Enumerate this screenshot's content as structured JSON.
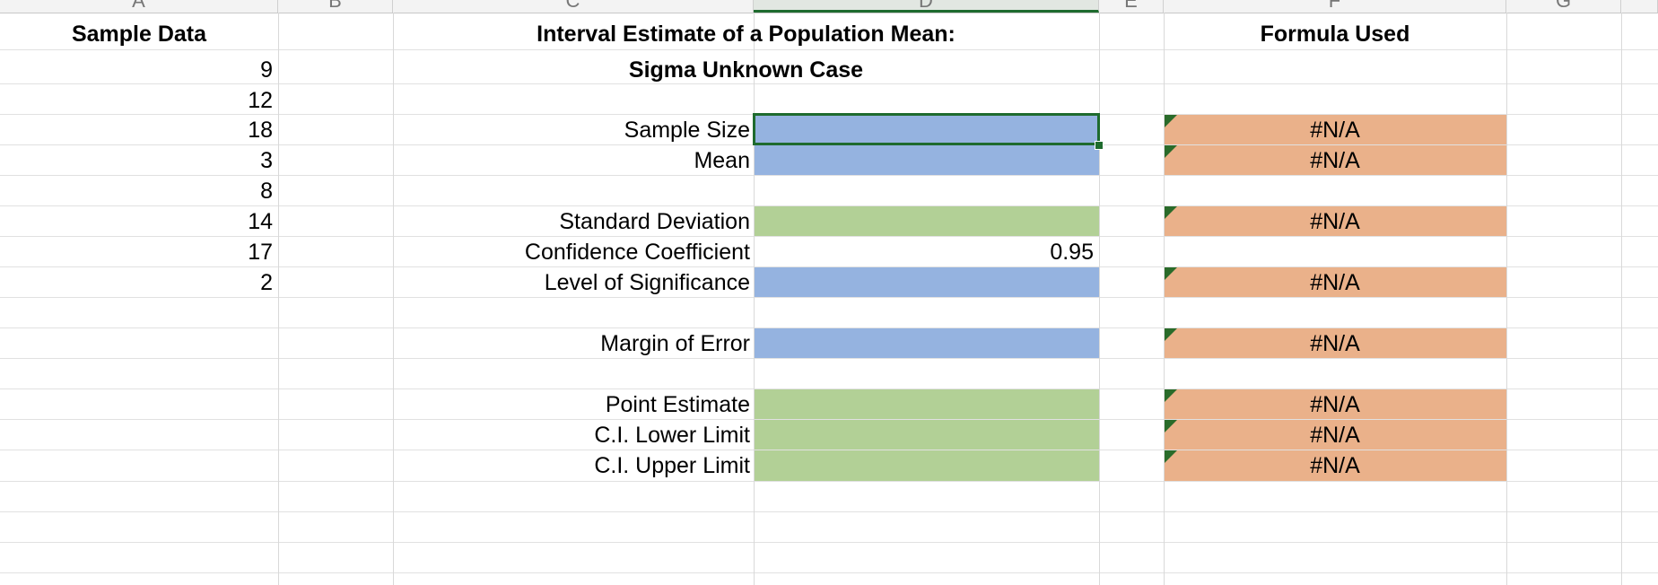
{
  "sheet": {
    "columns": [
      {
        "letter": "A",
        "selected": false
      },
      {
        "letter": "B",
        "selected": false
      },
      {
        "letter": "C",
        "selected": false
      },
      {
        "letter": "D",
        "selected": true
      },
      {
        "letter": "E",
        "selected": false
      },
      {
        "letter": "F",
        "selected": false
      },
      {
        "letter": "G",
        "selected": false
      }
    ],
    "sample_header": "Sample Data",
    "sample_values": [
      "9",
      "12",
      "18",
      "3",
      "8",
      "14",
      "17",
      "2"
    ],
    "title_line1": "Interval Estimate of a Population Mean:",
    "title_line2": "Sigma Unknown Case",
    "formula_header": "Formula Used",
    "rows": [
      {
        "label": "Sample Size",
        "value": "",
        "formula": "#N/A"
      },
      {
        "label": "Mean",
        "value": "",
        "formula": "#N/A"
      },
      {
        "label": "Standard Deviation",
        "value": "",
        "formula": "#N/A"
      },
      {
        "label": "Confidence Coefficient",
        "value": "0.95",
        "formula": ""
      },
      {
        "label": "Level of Significance",
        "value": "",
        "formula": "#N/A"
      },
      {
        "label": "Margin of Error",
        "value": "",
        "formula": "#N/A"
      },
      {
        "label": "Point Estimate",
        "value": "",
        "formula": "#N/A"
      },
      {
        "label": "C.I. Lower Limit",
        "value": "",
        "formula": "#N/A"
      },
      {
        "label": "C.I. Upper Limit",
        "value": "",
        "formula": "#N/A"
      }
    ],
    "colors": {
      "input_blue": "#95b3e0",
      "result_green": "#b2d096",
      "formula_orange": "#eab18a",
      "selection_green": "#1e6b2e"
    },
    "active_cell": "D4"
  }
}
